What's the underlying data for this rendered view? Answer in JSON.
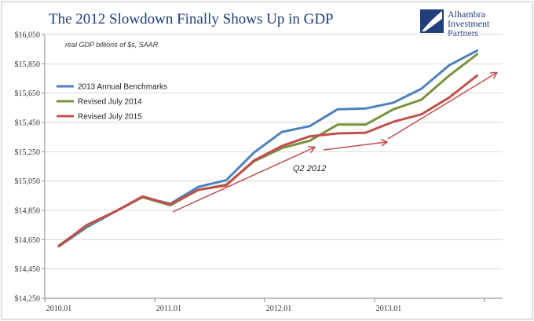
{
  "chart_data": {
    "type": "line",
    "title": "The 2012 Slowdown Finally Shows Up in GDP",
    "subtitle": "real GDP billions of $s, SAAR",
    "xlabel": "",
    "ylabel": "",
    "x": [
      "2010.01",
      "2010.04",
      "2010.07",
      "2010.10",
      "2011.01",
      "2011.04",
      "2011.07",
      "2011.10",
      "2012.01",
      "2012.04",
      "2012.07",
      "2012.10",
      "2013.01",
      "2013.04",
      "2013.07",
      "2013.10"
    ],
    "x_tick_labels": [
      "2010.01",
      "2011.01",
      "2012.01",
      "2013.01"
    ],
    "y_tick_labels": [
      "$14,250",
      "$14,450",
      "$14,650",
      "$14,850",
      "$15,050",
      "$15,250",
      "$15,450",
      "$15,650",
      "$15,850",
      "$16,050"
    ],
    "ylim": [
      14250,
      16050
    ],
    "grid": true,
    "legend_position": "top-left",
    "series": [
      {
        "name": "2013 Annual Benchmarks",
        "color": "#4f81bd",
        "values": [
          14605,
          14735,
          14840,
          14940,
          14895,
          15010,
          15055,
          15245,
          15385,
          15425,
          15540,
          15545,
          15585,
          15680,
          15840,
          15940
        ]
      },
      {
        "name": "Revised July 2014",
        "color": "#77933c",
        "values": [
          14610,
          14745,
          14840,
          14940,
          14885,
          14990,
          15025,
          15185,
          15275,
          15325,
          15435,
          15435,
          15540,
          15605,
          15770,
          15915
        ]
      },
      {
        "name": "Revised July 2015",
        "color": "#c0504d",
        "values": [
          14605,
          14750,
          14840,
          14945,
          14890,
          14990,
          15020,
          15190,
          15290,
          15355,
          15375,
          15380,
          15455,
          15505,
          15620,
          15770
        ]
      }
    ],
    "trend_arrows": {
      "color": "#c0504d"
    },
    "annotations": [
      {
        "text": "Q2 2012"
      }
    ]
  },
  "logo": {
    "lines": [
      "Alhambra",
      "Investment",
      "Partners"
    ],
    "color": "#1f3e7a"
  }
}
